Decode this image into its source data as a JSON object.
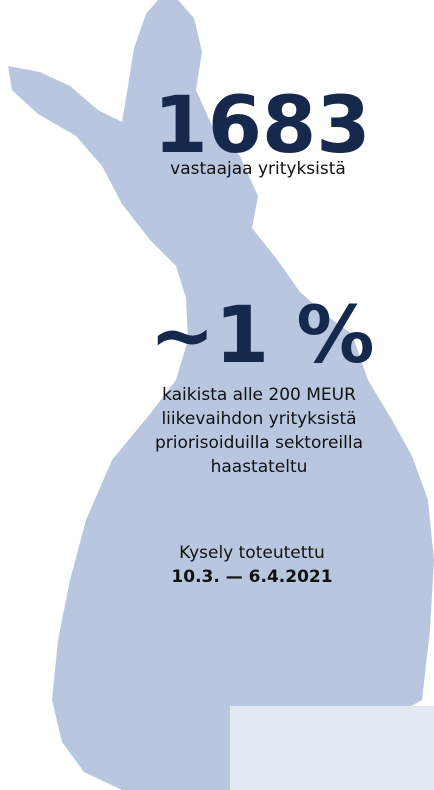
{
  "headline": {
    "number": "1683",
    "caption": "vastaajaa yrityksistä"
  },
  "share": {
    "number": "~1 %",
    "lines": [
      "kaikista alle 200 MEUR",
      "liikevaihdon yrityksistä",
      "priorisoiduilla sektoreilla",
      "haastateltu"
    ]
  },
  "survey": {
    "label": "Kysely toteutettu",
    "dates": "10.3. — 6.4.2021"
  }
}
